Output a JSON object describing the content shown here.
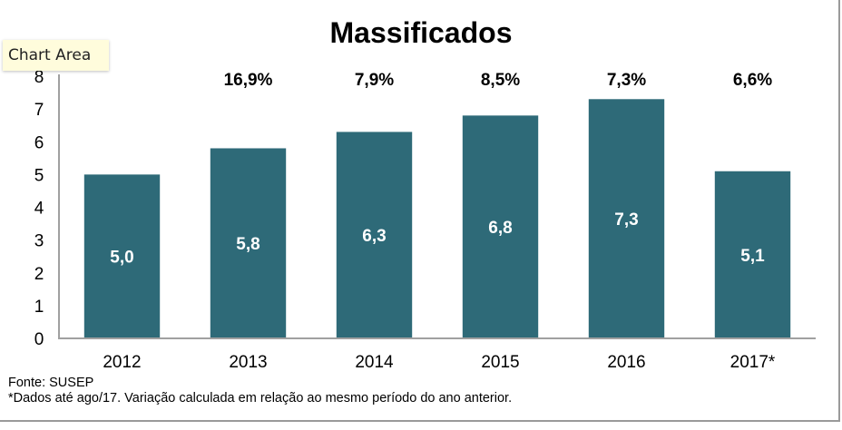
{
  "tooltip": {
    "label": "Chart Area"
  },
  "colors": {
    "bar": "#2e6a78",
    "axis": "#a0a0a0",
    "bar_label": "#ffffff",
    "growth_label": "#000000"
  },
  "chart_data": {
    "type": "bar",
    "title": "Massificados",
    "xlabel": "",
    "ylabel": "",
    "categories": [
      "2012",
      "2013",
      "2014",
      "2015",
      "2016",
      "2017*"
    ],
    "values": [
      5.0,
      5.8,
      6.3,
      6.8,
      7.3,
      5.1
    ],
    "value_labels": [
      "5,0",
      "5,8",
      "6,3",
      "6,8",
      "7,3",
      "5,1"
    ],
    "growth_labels": [
      "",
      "16,9%",
      "7,9%",
      "8,5%",
      "7,3%",
      "6,6%"
    ],
    "yticks": [
      "0",
      "1",
      "2",
      "3",
      "4",
      "5",
      "6",
      "7",
      "8"
    ],
    "ylim": [
      0,
      8
    ],
    "grid": false,
    "legend": "none"
  },
  "footnotes": {
    "source": "Fonte: SUSEP",
    "note": "*Dados até ago/17. Variação calculada em relação ao mesmo período do ano anterior."
  }
}
